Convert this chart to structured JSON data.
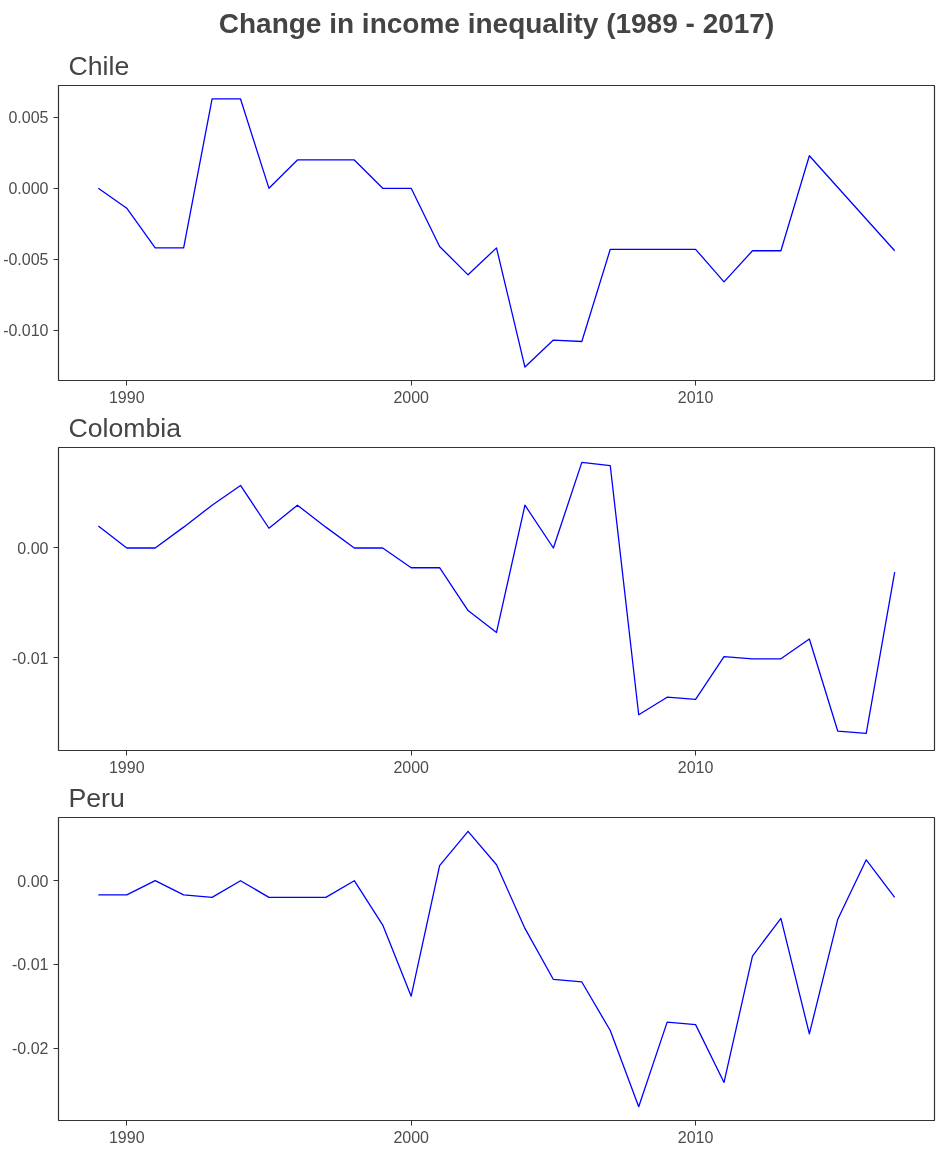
{
  "chart_data": [
    {
      "type": "line",
      "title": "Change in income inequality (1989 - 2017)",
      "subtitle": "Chile",
      "x": [
        1989,
        1990,
        1991,
        1992,
        1993,
        1994,
        1995,
        1996,
        1997,
        1998,
        1999,
        2000,
        2001,
        2002,
        2003,
        2004,
        2005,
        2006,
        2007,
        2008,
        2009,
        2010,
        2011,
        2012,
        2013,
        2014,
        2017
      ],
      "series": [
        {
          "color": "#0000ff",
          "values": [
            0.0,
            -0.0014,
            -0.0042,
            -0.0042,
            0.0063,
            0.0063,
            0.0,
            0.002,
            0.002,
            0.002,
            0.0,
            0.0,
            -0.0041,
            -0.0061,
            -0.0042,
            -0.0126,
            -0.0107,
            -0.0108,
            -0.0043,
            -0.0043,
            -0.0043,
            -0.0043,
            -0.0066,
            -0.0044,
            -0.0044,
            0.0023,
            -0.0044
          ]
        }
      ],
      "xlim": [
        1987.6,
        2018.4
      ],
      "xticks": [
        1990,
        2000,
        2010
      ],
      "ylim": [
        -0.01355,
        0.00725
      ],
      "yticks": [
        {
          "value": -0.01,
          "label": "-0.010"
        },
        {
          "value": -0.005,
          "label": "-0.005"
        },
        {
          "value": 0,
          "label": "0.000"
        },
        {
          "value": 0.005,
          "label": "0.005"
        }
      ]
    },
    {
      "type": "line",
      "title": "Colombia",
      "x": [
        1989,
        1990,
        1991,
        1992,
        1993,
        1994,
        1995,
        1996,
        1997,
        1998,
        1999,
        2000,
        2001,
        2002,
        2003,
        2004,
        2005,
        2006,
        2007,
        2008,
        2009,
        2010,
        2011,
        2012,
        2013,
        2014,
        2015,
        2016,
        2017
      ],
      "series": [
        {
          "color": "#0000ff",
          "values": [
            0.002,
            0.0,
            0.0,
            0.0019,
            0.0039,
            0.0057,
            0.0018,
            0.0039,
            0.0019,
            0.0,
            0.0,
            -0.0018,
            -0.0018,
            -0.0057,
            -0.0077,
            0.0039,
            0.0,
            0.0078,
            0.0075,
            -0.0152,
            -0.0136,
            -0.0138,
            -0.0099,
            -0.0101,
            -0.0101,
            -0.0083,
            -0.0167,
            -0.0169,
            -0.0022
          ]
        }
      ],
      "xlim": [
        1987.6,
        2018.4
      ],
      "xticks": [
        1990,
        2000,
        2010
      ],
      "ylim": [
        -0.01846,
        0.00916
      ],
      "yticks": [
        {
          "value": -0.01,
          "label": "-0.01"
        },
        {
          "value": 0,
          "label": "0.00"
        }
      ]
    },
    {
      "type": "line",
      "title": "Peru",
      "x": [
        1989,
        1990,
        1991,
        1992,
        1993,
        1994,
        1995,
        1996,
        1997,
        1998,
        1999,
        2000,
        2001,
        2002,
        2003,
        2004,
        2005,
        2006,
        2007,
        2008,
        2009,
        2010,
        2011,
        2012,
        2013,
        2014,
        2015,
        2016,
        2017
      ],
      "series": [
        {
          "color": "#0000ff",
          "values": [
            -0.0017,
            -0.0017,
            0.0,
            -0.0017,
            -0.002,
            0.0,
            -0.002,
            -0.002,
            -0.002,
            0.0,
            -0.0053,
            -0.0138,
            0.0018,
            0.0059,
            0.0019,
            -0.0057,
            -0.0118,
            -0.0121,
            -0.0179,
            -0.027,
            -0.0169,
            -0.0172,
            -0.0241,
            -0.009,
            -0.0045,
            -0.0183,
            -0.0046,
            0.0025,
            -0.002
          ]
        }
      ],
      "xlim": [
        1987.6,
        2018.4
      ],
      "xticks": [
        1990,
        2000,
        2010
      ],
      "ylim": [
        -0.02865,
        0.00755
      ],
      "yticks": [
        {
          "value": -0.02,
          "label": "-0.02"
        },
        {
          "value": -0.01,
          "label": "-0.01"
        },
        {
          "value": 0,
          "label": "0.00"
        }
      ]
    }
  ]
}
